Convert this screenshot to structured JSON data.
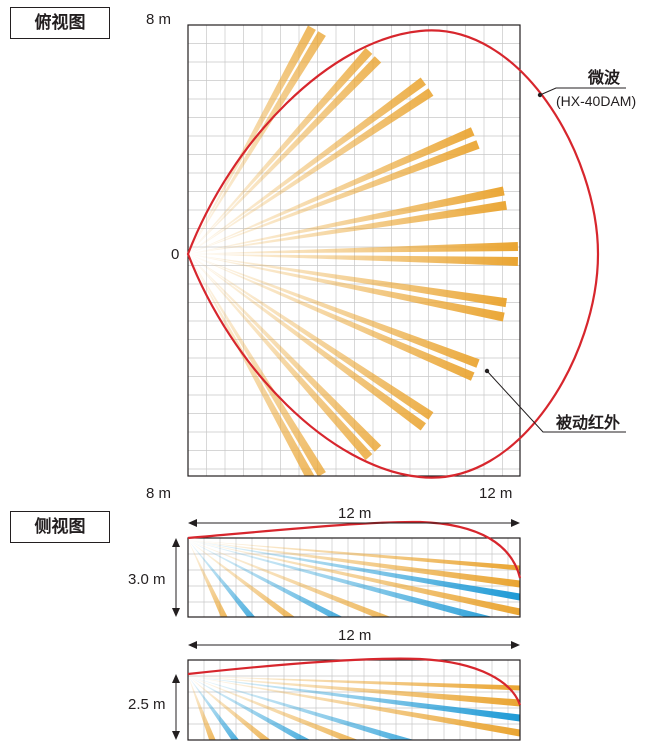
{
  "top_view": {
    "title": "俯视图",
    "label_top": "8 m",
    "label_origin": "0",
    "label_bottom_left": "8 m",
    "label_bottom_right": "12 m",
    "microwave_label": "微波",
    "microwave_model": "(HX-40DAM)",
    "pir_label": "被动红外"
  },
  "side_view": {
    "title": "侧视图",
    "panel1": {
      "width_label": "12 m",
      "height_label": "3.0 m"
    },
    "panel2": {
      "width_label": "12 m",
      "height_label": "2.5 m"
    }
  },
  "colors": {
    "microwave": "#d7262d",
    "pir_orange": "#eaa532",
    "pir_blue": "#1e9ad6",
    "grid": "#c8c8c8",
    "frame": "#231f20"
  }
}
